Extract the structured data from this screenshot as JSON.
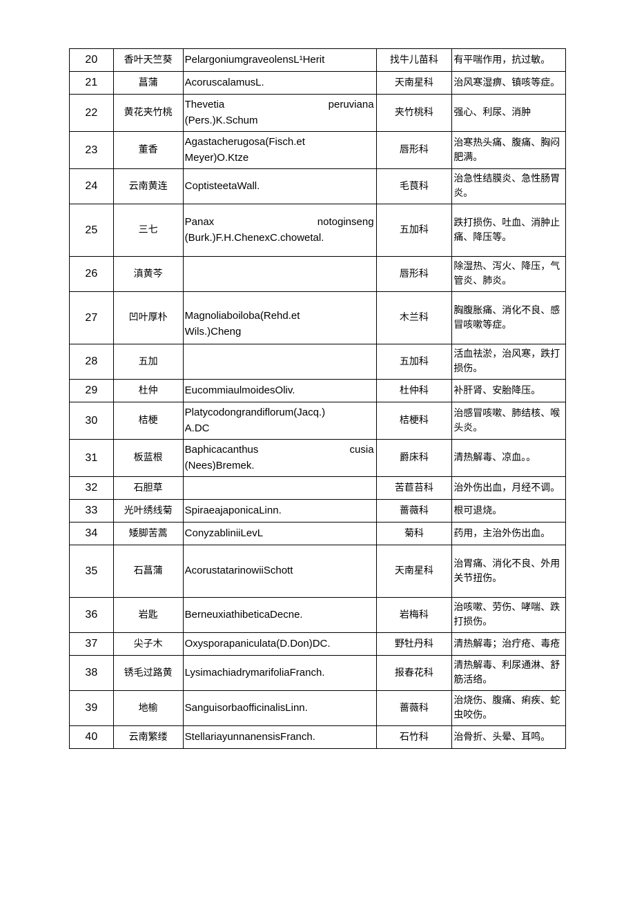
{
  "table": {
    "columns": {
      "num_width": 58,
      "name_width": 92,
      "latin_width": 255,
      "family_width": 100,
      "use_width": 150
    },
    "styling": {
      "border_color": "#000000",
      "background_color": "#ffffff",
      "base_font_size": 14,
      "num_font_size": 16,
      "latin_font_size": 15,
      "body_padding_top": 70,
      "body_padding_side": 100
    },
    "rows": [
      {
        "num": "20",
        "name": "香叶天竺葵",
        "latin": "PelargoniumgraveolensL¹Herit",
        "family": "找牛儿苗科",
        "use": "有平喘作用，抗过敏。"
      },
      {
        "num": "21",
        "name": "菖蒲",
        "latin": "AcoruscalamusL.",
        "family": "天南星科",
        "use": "治风寒湿痹、镇咳等症。"
      },
      {
        "num": "22",
        "name": "黄花夹竹桃",
        "latin_l1": "Thevetia",
        "latin_r1": "peruviana",
        "latin_l2": "(Pers.)K.Schum",
        "family": "夹竹桃科",
        "use": "强心、利尿、消肿"
      },
      {
        "num": "23",
        "name": "董香",
        "latin_l1": "Agastacherugosa(Fisch.et",
        "latin_l2": "Meyer)O.Ktze",
        "family": "唇形科",
        "use": "治寒热头痛、腹痛、胸闷肥满。"
      },
      {
        "num": "24",
        "name": "云南黄连",
        "latin": "CoptisteetaWall.",
        "family": "毛茛科",
        "use": "治急性结膜炎、急性肠胃炎。"
      },
      {
        "num": "25",
        "name": "三七",
        "latin_l1": "Panax",
        "latin_r1": "notoginseng",
        "latin_l2": "(Burk.)F.H.ChenexC.chowetal.",
        "family": "五加科",
        "use": "跌打损伤、吐血、消肿止痛、降压等。"
      },
      {
        "num": "26",
        "name": "滇黄芩",
        "latin": "",
        "family": "唇形科",
        "use": "除湿热、泻火、降压，气管炎、肺炎。"
      },
      {
        "num": "27",
        "name": "凹叶厚朴",
        "latin_l1": "Magnoliaboiloba(Rehd.et",
        "latin_l2": "Wils.)Cheng",
        "family": "木兰科",
        "use": "胸腹胀痛、消化不良、感冒咳嗽等症。"
      },
      {
        "num": "28",
        "name": "五加",
        "latin": "",
        "family": "五加科",
        "use": "活血祛淤，治风寒，跌打损伤。"
      },
      {
        "num": "29",
        "name": "杜仲",
        "latin": "EucommiaulmoidesOliv.",
        "family": "杜仲科",
        "use": "补肝肾、安胎降压。"
      },
      {
        "num": "30",
        "name": "桔梗",
        "latin_l1": "Platycodongrandiflorum(Jacq.)",
        "latin_l2": "A.DC",
        "family": "桔梗科",
        "use": "治感冒咳嗽、肺结核、喉头炎。"
      },
      {
        "num": "31",
        "name": "板蓝根",
        "latin_l1": "Baphicacanthus",
        "latin_r1": "cusia",
        "latin_l2": "(Nees)Bremek.",
        "family": "爵床科",
        "use": "清热解毒、凉血。。"
      },
      {
        "num": "32",
        "name": "石胆草",
        "latin": "",
        "family": "苦苣苔科",
        "use": "治外伤出血，月经不调。"
      },
      {
        "num": "33",
        "name": "光叶绣线菊",
        "latin": "SpiraeajaponicaLinn.",
        "family": "蔷薇科",
        "use": "根可退烧。"
      },
      {
        "num": "34",
        "name": "矮脚苦蒿",
        "latin": "ConyzabliniiLevL",
        "family": "菊科",
        "use": "药用，主治外伤出血。"
      },
      {
        "num": "35",
        "name": "石菖蒲",
        "latin": "AcorustatarinowiiSchott",
        "family": "天南星科",
        "use": "治胃痛、消化不良、外用关节扭伤。"
      },
      {
        "num": "36",
        "name": "岩匙",
        "latin": "BerneuxiathibeticaDecne.",
        "family": "岩梅科",
        "use": "治咳嗽、劳伤、哮喘、跌打损伤。"
      },
      {
        "num": "37",
        "name": "尖子木",
        "latin": "Oxysporapaniculata(D.Don)DC.",
        "family": "野牡丹科",
        "use": "清热解毒；治疔疮、毒疮"
      },
      {
        "num": "38",
        "name": "锈毛过路黄",
        "latin": "LysimachiadrymarifoliaFranch.",
        "family": "报春花科",
        "use": "清热解毒、利尿通淋、舒筋活络。"
      },
      {
        "num": "39",
        "name": "地榆",
        "latin": "SanguisorbaofficinalisLinn.",
        "family": "蔷薇科",
        "use": "治烧伤、腹痛、痢疾、蛇虫咬伤。"
      },
      {
        "num": "40",
        "name": "云南繁缕",
        "latin": "StellariayunnanensisFranch.",
        "family": "石竹科",
        "use": "治骨折、头晕、耳鸣。"
      }
    ]
  }
}
